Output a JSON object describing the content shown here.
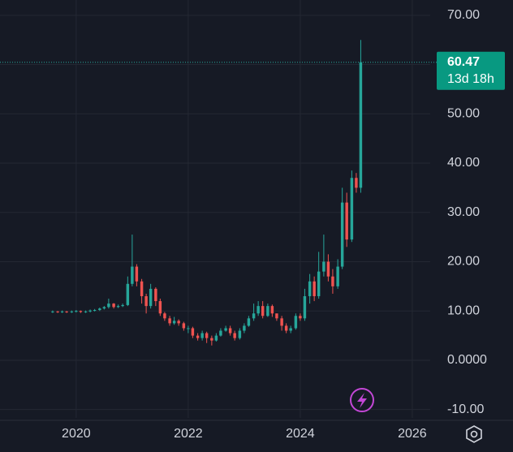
{
  "chart_data": {
    "type": "candlestick",
    "x": [
      2019.58,
      2019.67,
      2019.75,
      2019.83,
      2019.92,
      2020.0,
      2020.08,
      2020.17,
      2020.25,
      2020.33,
      2020.42,
      2020.5,
      2020.58,
      2020.67,
      2020.75,
      2020.83,
      2020.92,
      2021.0,
      2021.08,
      2021.17,
      2021.25,
      2021.33,
      2021.42,
      2021.5,
      2021.58,
      2021.67,
      2021.75,
      2021.83,
      2021.92,
      2022.0,
      2022.08,
      2022.17,
      2022.25,
      2022.33,
      2022.42,
      2022.5,
      2022.58,
      2022.67,
      2022.75,
      2022.83,
      2022.92,
      2023.0,
      2023.08,
      2023.17,
      2023.25,
      2023.33,
      2023.42,
      2023.5,
      2023.58,
      2023.67,
      2023.75,
      2023.83,
      2023.92,
      2024.0,
      2024.08,
      2024.17,
      2024.25,
      2024.33,
      2024.42,
      2024.5,
      2024.58,
      2024.67,
      2024.75,
      2024.83,
      2024.92,
      2025.0,
      2025.08
    ],
    "open": [
      9.8,
      9.9,
      9.8,
      9.9,
      9.8,
      9.9,
      10.0,
      9.8,
      9.9,
      10.1,
      10.2,
      10.5,
      10.8,
      11.5,
      10.8,
      11.0,
      11.2,
      15.5,
      19.0,
      16.0,
      13.0,
      11.0,
      14.5,
      12.0,
      9.5,
      8.5,
      7.5,
      8.0,
      7.5,
      6.5,
      6.5,
      5.0,
      4.5,
      5.5,
      4.5,
      4.0,
      5.0,
      6.0,
      6.5,
      5.5,
      4.5,
      6.0,
      7.0,
      8.5,
      9.5,
      11.0,
      9.0,
      11.0,
      9.5,
      8.5,
      7.0,
      6.0,
      6.5,
      9.0,
      8.5,
      13.0,
      16.0,
      13.0,
      18.0,
      20.0,
      17.0,
      15.0,
      19.0,
      32.0,
      24.5,
      37.0,
      35.0
    ],
    "high": [
      10.1,
      10.0,
      10.1,
      10.0,
      10.1,
      10.2,
      10.1,
      10.1,
      10.3,
      10.4,
      10.7,
      11.0,
      12.5,
      11.6,
      11.3,
      11.5,
      17.0,
      25.5,
      19.5,
      16.5,
      13.5,
      15.5,
      14.8,
      12.5,
      9.8,
      9.0,
      8.8,
      8.3,
      7.8,
      7.0,
      6.8,
      5.5,
      6.0,
      5.8,
      5.0,
      5.5,
      6.5,
      7.0,
      7.0,
      6.0,
      6.5,
      7.5,
      9.0,
      11.5,
      12.0,
      12.0,
      11.5,
      11.3,
      9.5,
      9.0,
      7.5,
      7.0,
      9.5,
      9.5,
      14.5,
      17.5,
      17.0,
      22.0,
      25.5,
      21.5,
      18.5,
      20.5,
      35.0,
      34.0,
      38.5,
      38.0,
      65.0
    ],
    "low": [
      9.6,
      9.6,
      9.6,
      9.6,
      9.6,
      9.7,
      9.6,
      9.6,
      9.7,
      9.9,
      10.0,
      10.3,
      10.5,
      10.5,
      10.6,
      10.8,
      11.0,
      15.0,
      15.0,
      11.5,
      9.5,
      10.5,
      11.0,
      9.0,
      8.0,
      7.0,
      7.2,
      7.0,
      6.0,
      5.5,
      4.5,
      4.0,
      4.0,
      3.5,
      3.0,
      3.8,
      4.8,
      5.8,
      5.0,
      4.0,
      4.2,
      5.5,
      6.8,
      8.0,
      9.0,
      8.5,
      8.8,
      8.8,
      8.0,
      6.0,
      5.5,
      5.5,
      6.2,
      8.0,
      8.0,
      11.5,
      12.0,
      12.5,
      17.0,
      16.0,
      13.5,
      14.5,
      18.5,
      23.0,
      24.0,
      34.0,
      34.0
    ],
    "close": [
      9.9,
      9.8,
      9.9,
      9.8,
      9.9,
      10.0,
      9.8,
      9.9,
      10.1,
      10.2,
      10.5,
      10.8,
      11.5,
      10.8,
      11.0,
      11.2,
      15.5,
      19.0,
      16.0,
      13.0,
      11.0,
      14.5,
      12.0,
      9.5,
      8.5,
      7.5,
      8.0,
      7.5,
      6.5,
      6.5,
      5.0,
      4.5,
      5.5,
      4.5,
      4.0,
      5.0,
      6.0,
      6.5,
      5.5,
      4.5,
      6.0,
      7.0,
      8.5,
      9.5,
      11.0,
      9.0,
      11.0,
      9.5,
      8.5,
      7.0,
      6.0,
      6.5,
      9.0,
      8.5,
      13.0,
      16.0,
      13.0,
      18.0,
      20.0,
      17.0,
      15.0,
      19.0,
      32.0,
      24.5,
      37.0,
      35.0,
      60.47
    ],
    "up_color": "#26a69a",
    "down_color": "#ef5350",
    "bar_countdown": "13d 18h",
    "xlim": [
      2018.64,
      2026.32
    ],
    "xticks": [
      2020,
      2022,
      2024,
      2026
    ],
    "ylim": [
      -11.7,
      73.1
    ],
    "yticks": [
      {
        "value": -10,
        "label": "-10.00"
      },
      {
        "value": 0,
        "label": "0.0000"
      },
      {
        "value": 10,
        "label": "10.00"
      },
      {
        "value": 20,
        "label": "20.00"
      },
      {
        "value": 30,
        "label": "30.00"
      },
      {
        "value": 40,
        "label": "40.00"
      },
      {
        "value": 50,
        "label": "50.00"
      },
      {
        "value": 60,
        "label": "60.00"
      },
      {
        "value": 70,
        "label": "70.00"
      }
    ],
    "grid": true
  }
}
